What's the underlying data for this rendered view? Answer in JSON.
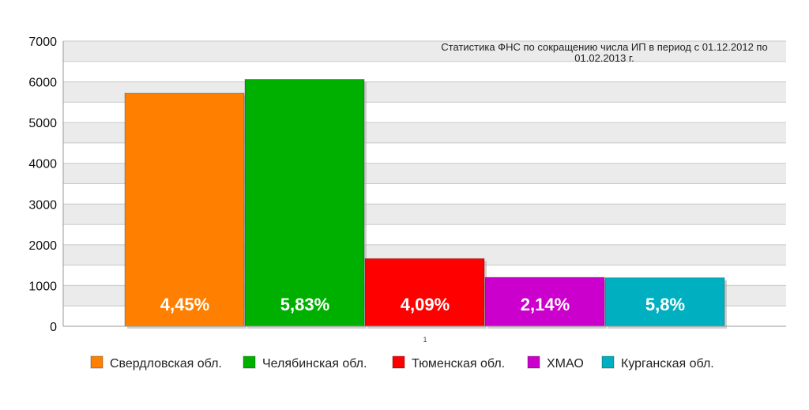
{
  "chart_data": {
    "type": "bar",
    "title_line1": "Статистика ФНС по сокращению числа ИП в период с 01.12.2012 по",
    "title_line2": "01.02.2013 г.",
    "categories": [
      "1"
    ],
    "ylim": [
      0,
      7000
    ],
    "yticks": [
      0,
      1000,
      2000,
      3000,
      4000,
      5000,
      6000,
      7000
    ],
    "grid": true,
    "legend_placement": "bottom",
    "series": [
      {
        "name": "Свердловская обл.",
        "value": 5720,
        "label": "4,45%",
        "color": "#ff7f00"
      },
      {
        "name": "Челябинская обл.",
        "value": 6060,
        "label": "5,83%",
        "color": "#00b000"
      },
      {
        "name": "Тюменская обл.",
        "value": 1660,
        "label": "4,09%",
        "color": "#ff0000"
      },
      {
        "name": "ХМАО",
        "value": 1200,
        "label": "2,14%",
        "color": "#cc00cc"
      },
      {
        "name": "Курганская обл.",
        "value": 1190,
        "label": "5,8%",
        "color": "#00b0c0"
      }
    ]
  }
}
